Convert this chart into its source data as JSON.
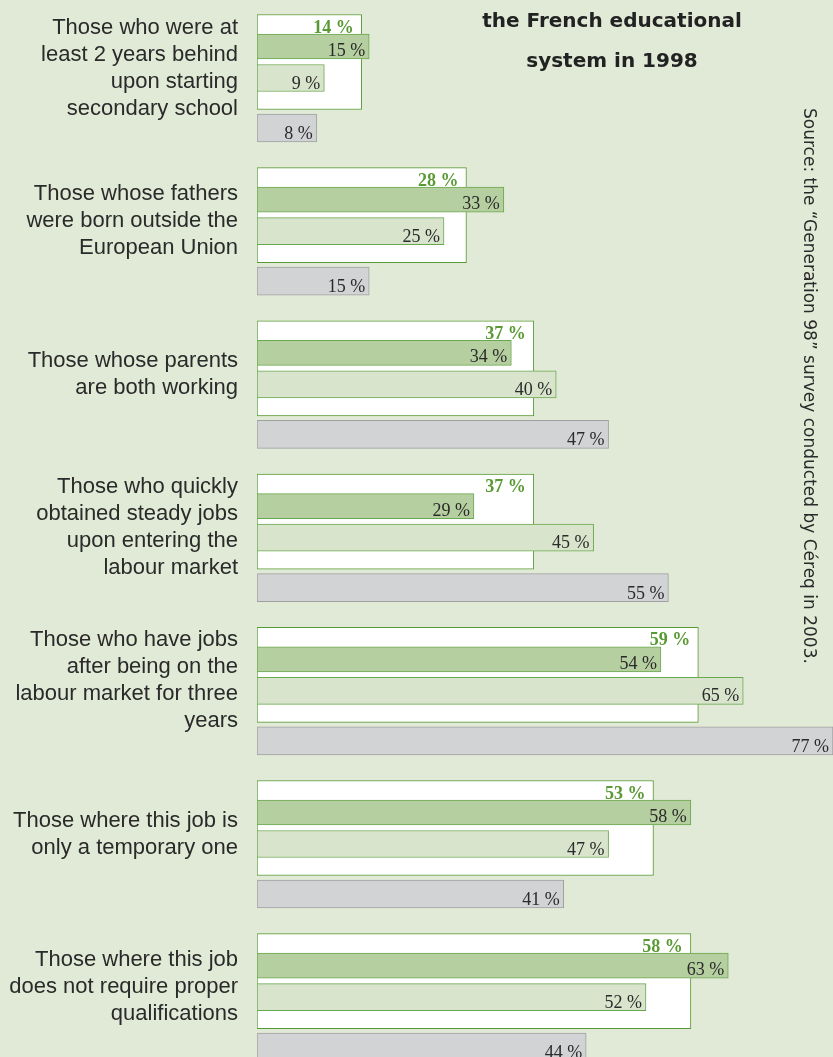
{
  "chart_data": {
    "type": "bar",
    "orientation": "horizontal",
    "title": "the French educational system in 1998",
    "annotations": [
      "Source: the “Generation 98” survey conducted by Céreq in 2003."
    ],
    "categories": [
      "Those who were at least 2 years behind upon starting secondary school",
      "Those whose fathers were born outside the European Union",
      "Those whose parents are both working",
      "Those who quickly obtained steady jobs upon entering the labour market",
      "Those who have jobs after being on the labour market for three years",
      "Those where this job is only a temporary one",
      "Those where this job does not require proper qualifications"
    ],
    "series": [
      {
        "color": "#ffffff",
        "values": [
          14,
          28,
          37,
          37,
          59,
          53,
          58
        ],
        "value_labels": [
          "14 %",
          "28 %",
          "37 %",
          "37 %",
          "59 %",
          "53 %",
          "58 %"
        ]
      },
      {
        "color": "#b6cfa0",
        "values": [
          15,
          33,
          34,
          29,
          54,
          58,
          63
        ],
        "value_labels": [
          "15 %",
          "33 %",
          "34 %",
          "29 %",
          "54 %",
          "58 %",
          "63 %"
        ]
      },
      {
        "color": "#d8e5cc",
        "values": [
          9,
          25,
          40,
          45,
          65,
          47,
          52
        ],
        "value_labels": [
          "9 %",
          "25 %",
          "40 %",
          "45 %",
          "65 %",
          "47 %",
          "52 %"
        ]
      },
      {
        "color": "#d2d3d5",
        "values": [
          8,
          15,
          47,
          55,
          77,
          41,
          44
        ],
        "value_labels": [
          "8 %",
          "15 %",
          "47 %",
          "55 %",
          "77 %",
          "41 %",
          "44 %"
        ]
      }
    ],
    "tick_labels": false,
    "legend": false
  }
}
